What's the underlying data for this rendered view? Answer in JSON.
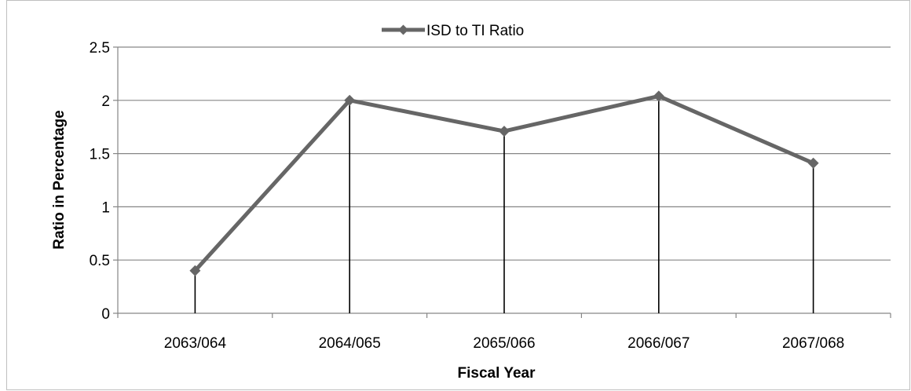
{
  "chart_data": {
    "type": "line",
    "categories": [
      "2063/064",
      "2064/065",
      "2065/066",
      "2066/067",
      "2067/068"
    ],
    "series": [
      {
        "name": "ISD to TI Ratio",
        "values": [
          0.4,
          2.0,
          1.71,
          2.04,
          1.41
        ],
        "color": "#666666",
        "marker": "diamond"
      }
    ],
    "title": "",
    "xlabel": "Fiscal Year",
    "ylabel": "Ratio in Percentage",
    "ylim": [
      0,
      2.5
    ],
    "yticks": [
      "0",
      "0.5",
      "1",
      "1.5",
      "2",
      "2.5"
    ],
    "ytick_values": [
      0,
      0.5,
      1,
      1.5,
      2,
      2.5
    ],
    "grid": true,
    "drop_lines": true,
    "legend_position": "top-center",
    "colors": {
      "line": "#666666",
      "gridline": "#868686",
      "drop_line": "#000000",
      "frame": "#bfbfbf"
    }
  }
}
